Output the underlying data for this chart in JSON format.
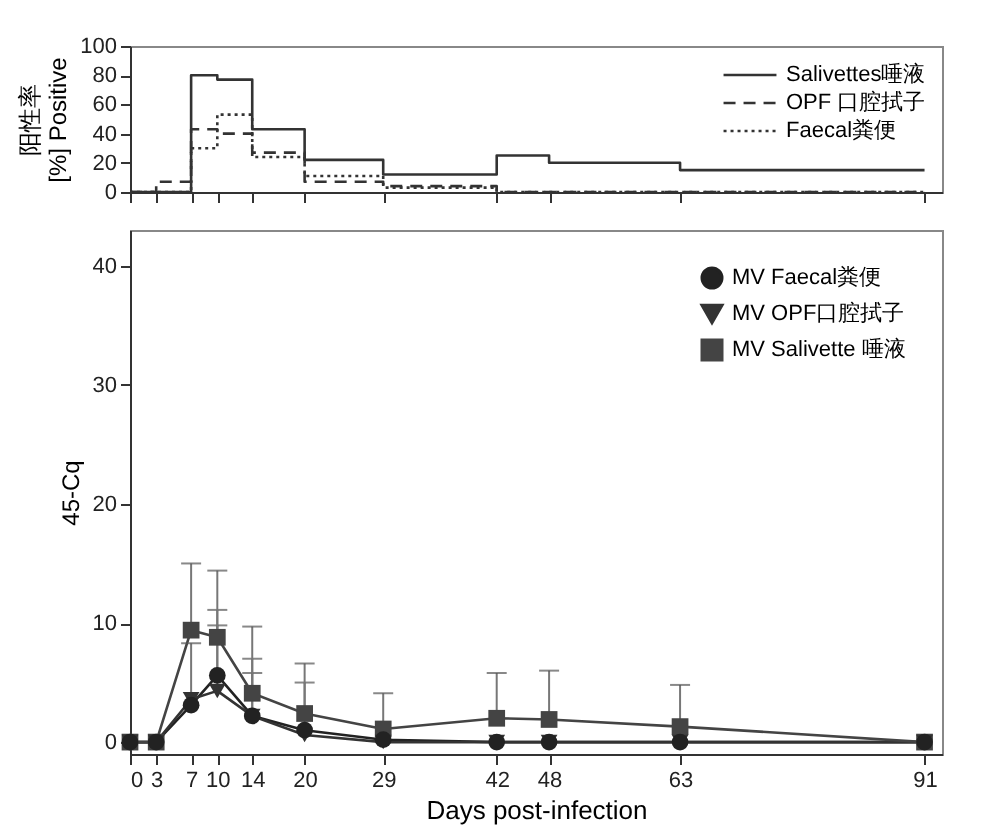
{
  "chart_data": [
    {
      "type": "step",
      "ylabel": "阳性率\n[%] Positive",
      "x": [
        0,
        3,
        7,
        10,
        14,
        20,
        29,
        42,
        48,
        63,
        91
      ],
      "xlim": [
        0,
        93
      ],
      "xticks": [
        0,
        3,
        7,
        10,
        14,
        20,
        29,
        42,
        48,
        63,
        91
      ],
      "ylim": [
        0,
        100
      ],
      "yticks": [
        0,
        20,
        40,
        60,
        80,
        100
      ],
      "tick_labels": "y",
      "legend": "top right",
      "grid": false,
      "series": [
        {
          "name": "Salivettes唾液",
          "color": "#333333",
          "line_style": "solid",
          "values": [
            0,
            0,
            80,
            77,
            43,
            22,
            12,
            25,
            20,
            15,
            15
          ]
        },
        {
          "name": "OPF 口腔拭子",
          "color": "#333333",
          "line_style": "dashed",
          "values": [
            0,
            7,
            43,
            40,
            27,
            7,
            4,
            0,
            0,
            0,
            0
          ]
        },
        {
          "name": "Faecal粪便",
          "color": "#333333",
          "line_style": "dotted",
          "values": [
            0,
            0,
            30,
            53,
            24,
            11,
            3,
            0,
            0,
            0,
            0
          ]
        }
      ]
    },
    {
      "type": "line",
      "xlabel": "Days post-infection",
      "ylabel": "45-Cq",
      "x": [
        0,
        3,
        7,
        10,
        14,
        20,
        29,
        42,
        48,
        63,
        91
      ],
      "xlim": [
        0,
        93
      ],
      "xticks": [
        0,
        3,
        7,
        10,
        14,
        20,
        29,
        42,
        48,
        63,
        91
      ],
      "ylim": [
        -1,
        43
      ],
      "yticks": [
        0,
        10,
        20,
        30,
        40
      ],
      "legend": "top right",
      "grid": false,
      "series": [
        {
          "name": "MV Faecal粪便",
          "color": "#222222",
          "marker": "circle",
          "values": [
            0,
            0,
            3.1,
            5.6,
            2.2,
            1.0,
            0.2,
            0,
            0,
            0,
            0
          ],
          "errors": [
            null,
            null,
            [
              3.1,
              8.3
            ],
            [
              5.6,
              11.1
            ],
            [
              2.2,
              7.0
            ],
            [
              1.0,
              5.0
            ],
            null,
            null,
            null,
            null,
            null
          ]
        },
        {
          "name": "MV OPF口腔拭子",
          "color": "#333333",
          "marker": "triangle",
          "values": [
            0,
            0,
            3.6,
            4.3,
            2.2,
            0.6,
            0,
            0,
            0,
            0,
            0
          ],
          "errors": [
            null,
            null,
            null,
            [
              4.3,
              9.8
            ],
            [
              2.2,
              5.8
            ],
            null,
            null,
            null,
            null,
            null,
            null
          ]
        },
        {
          "name": "MV Salivette 唾液",
          "color": "#444444",
          "marker": "square",
          "values": [
            0,
            0,
            9.4,
            8.8,
            4.1,
            2.4,
            1.1,
            2.0,
            1.9,
            1.3,
            0
          ],
          "errors": [
            null,
            null,
            [
              9.4,
              15.0
            ],
            [
              8.8,
              14.4
            ],
            [
              4.1,
              9.7
            ],
            [
              2.4,
              6.6
            ],
            [
              1.1,
              4.1
            ],
            [
              2.0,
              5.8
            ],
            [
              1.9,
              6.0
            ],
            [
              1.3,
              4.8
            ],
            null
          ]
        }
      ]
    }
  ]
}
